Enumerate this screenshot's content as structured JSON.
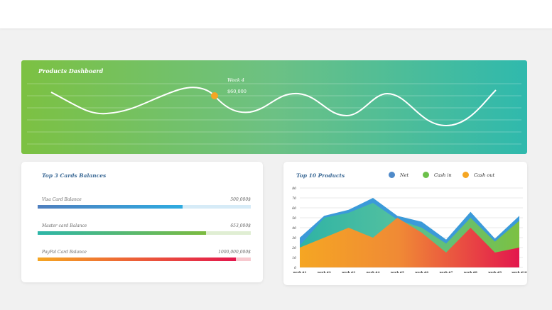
{
  "banner": {
    "title": "Products Dashboard",
    "tooltip_label": "Week 4",
    "tooltip_value": "$60,000"
  },
  "cards": {
    "title": "Top 3 Cards Balances",
    "items": [
      {
        "label": "Visa Card Balance",
        "value": "500,000$",
        "percent": 68,
        "colors": [
          "#4f7fbf",
          "#2eabe0"
        ],
        "track": "#d6ebf7"
      },
      {
        "label": "Master card Balance",
        "value": "653,000$",
        "percent": 79,
        "colors": [
          "#2db6a8",
          "#7cbb40"
        ],
        "track": "#e0eed3"
      },
      {
        "label": "PayPal Card Balance",
        "value": "1000,000,000$",
        "percent": 93,
        "colors": [
          "#f5a623",
          "#e3174d"
        ],
        "track": "#f7c9cf"
      }
    ]
  },
  "chart_data": {
    "type": "area",
    "title": "Top 10 Products",
    "categories": [
      "week #1",
      "week #2",
      "week #3",
      "week #4",
      "week #5",
      "week #6",
      "week #7",
      "week #8",
      "week #9",
      "week #10"
    ],
    "ylim": [
      0,
      80
    ],
    "yticks": [
      0,
      10,
      20,
      30,
      40,
      50,
      60,
      70,
      80
    ],
    "grid": true,
    "legend": "top",
    "series": [
      {
        "name": "Net",
        "color": "#3b9ad9",
        "values": [
          30,
          52,
          58,
          70,
          52,
          46,
          28,
          56,
          29,
          52
        ]
      },
      {
        "name": "Cash in",
        "color": "#6cc04a",
        "values": [
          22,
          50,
          55,
          65,
          48,
          40,
          24,
          50,
          26,
          47
        ]
      },
      {
        "name": "Cash out",
        "color": "#f5a623",
        "values": [
          20,
          30,
          40,
          30,
          50,
          35,
          15,
          40,
          15,
          20
        ]
      }
    ]
  }
}
